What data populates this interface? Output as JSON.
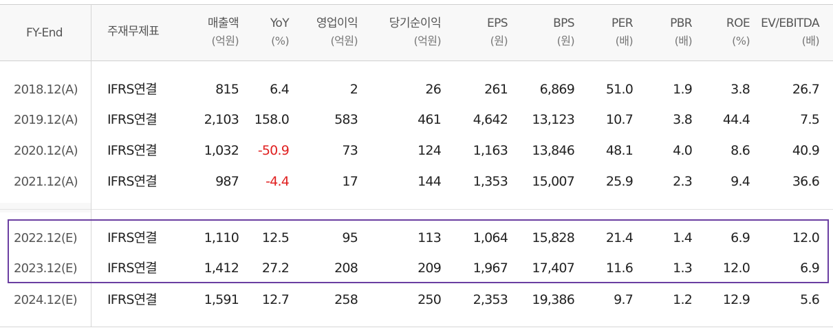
{
  "table": {
    "headers": [
      {
        "label": "FY-End",
        "unit": ""
      },
      {
        "label": "주재무제표",
        "unit": ""
      },
      {
        "label": "매출액",
        "unit": "(억원)"
      },
      {
        "label": "YoY",
        "unit": "(%)"
      },
      {
        "label": "영업이익",
        "unit": "(억원)"
      },
      {
        "label": "당기순이익",
        "unit": "(억원)"
      },
      {
        "label": "EPS",
        "unit": "(원)"
      },
      {
        "label": "BPS",
        "unit": "(원)"
      },
      {
        "label": "PER",
        "unit": "(배)"
      },
      {
        "label": "PBR",
        "unit": "(배)"
      },
      {
        "label": "ROE",
        "unit": "(%)"
      },
      {
        "label": "EV/EBITDA",
        "unit": "(배)"
      }
    ],
    "rows": [
      {
        "fy": "2018.12(A)",
        "basis": "IFRS연결",
        "revenue": "815",
        "yoy": "6.4",
        "op_income": "2",
        "net_income": "26",
        "eps": "261",
        "bps": "6,869",
        "per": "51.0",
        "pbr": "1.9",
        "roe": "3.8",
        "ev_ebitda": "26.7"
      },
      {
        "fy": "2019.12(A)",
        "basis": "IFRS연결",
        "revenue": "2,103",
        "yoy": "158.0",
        "op_income": "583",
        "net_income": "461",
        "eps": "4,642",
        "bps": "13,123",
        "per": "10.7",
        "pbr": "3.8",
        "roe": "44.4",
        "ev_ebitda": "7.5"
      },
      {
        "fy": "2020.12(A)",
        "basis": "IFRS연결",
        "revenue": "1,032",
        "yoy": "-50.9",
        "op_income": "73",
        "net_income": "124",
        "eps": "1,163",
        "bps": "13,846",
        "per": "48.1",
        "pbr": "4.0",
        "roe": "8.6",
        "ev_ebitda": "40.9"
      },
      {
        "fy": "2021.12(A)",
        "basis": "IFRS연결",
        "revenue": "987",
        "yoy": "-4.4",
        "op_income": "17",
        "net_income": "144",
        "eps": "1,353",
        "bps": "15,007",
        "per": "25.9",
        "pbr": "2.3",
        "roe": "9.4",
        "ev_ebitda": "36.6"
      },
      {
        "fy": "2022.12(E)",
        "basis": "IFRS연결",
        "revenue": "1,110",
        "yoy": "12.5",
        "op_income": "95",
        "net_income": "113",
        "eps": "1,064",
        "bps": "15,828",
        "per": "21.4",
        "pbr": "1.4",
        "roe": "6.9",
        "ev_ebitda": "12.0"
      },
      {
        "fy": "2023.12(E)",
        "basis": "IFRS연결",
        "revenue": "1,412",
        "yoy": "27.2",
        "op_income": "208",
        "net_income": "209",
        "eps": "1,967",
        "bps": "17,407",
        "per": "11.6",
        "pbr": "1.3",
        "roe": "12.0",
        "ev_ebitda": "6.9"
      },
      {
        "fy": "2024.12(E)",
        "basis": "IFRS연결",
        "revenue": "1,591",
        "yoy": "12.7",
        "op_income": "258",
        "net_income": "250",
        "eps": "2,353",
        "bps": "19,386",
        "per": "9.7",
        "pbr": "1.2",
        "roe": "12.9",
        "ev_ebitda": "5.6"
      }
    ]
  },
  "colors": {
    "negative": "#e02020",
    "highlight_border": "#6a3ea1",
    "header_bg": "#f8f8f8"
  }
}
